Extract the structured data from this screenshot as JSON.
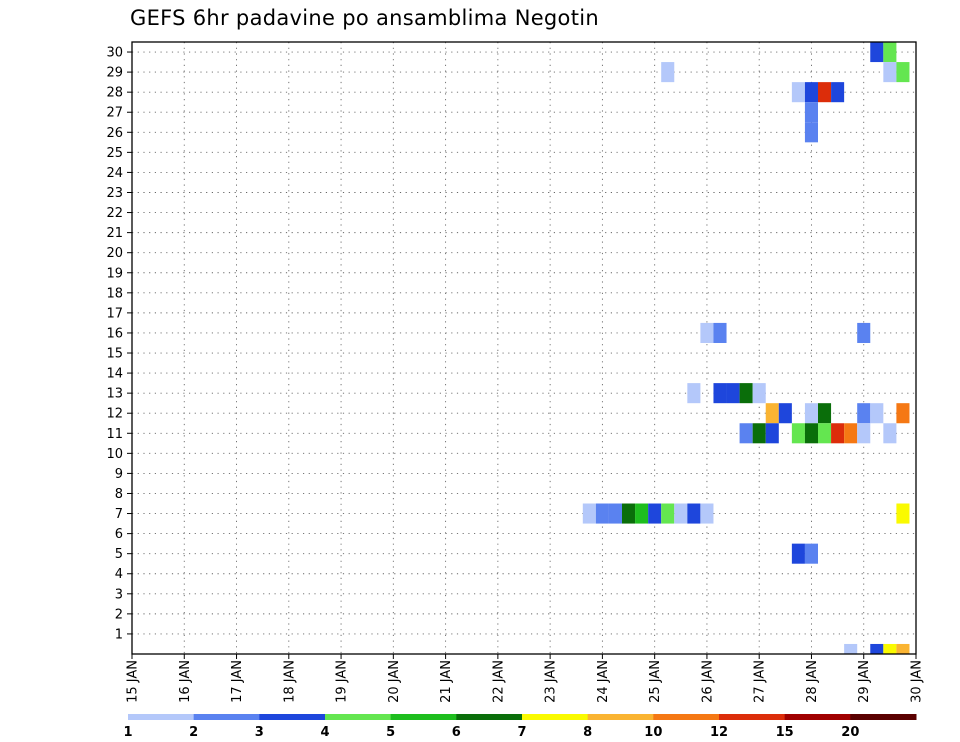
{
  "chart_data": {
    "type": "heatmap",
    "title": "GEFS 6hr padavine po ansamblima Negotin",
    "xlabel": "",
    "ylabel": "",
    "x_ticks": [
      "15 JAN",
      "16 JAN",
      "17 JAN",
      "18 JAN",
      "19 JAN",
      "20 JAN",
      "21 JAN",
      "22 JAN",
      "23 JAN",
      "24 JAN",
      "25 JAN",
      "26 JAN",
      "27 JAN",
      "28 JAN",
      "29 JAN",
      "30 JAN"
    ],
    "y_ticks": [
      "1",
      "2",
      "3",
      "4",
      "5",
      "6",
      "7",
      "8",
      "9",
      "10",
      "11",
      "12",
      "13",
      "14",
      "15",
      "16",
      "17",
      "18",
      "19",
      "20",
      "21",
      "22",
      "23",
      "24",
      "25",
      "26",
      "27",
      "28",
      "29",
      "30"
    ],
    "x_range": [
      "15 JAN 00h",
      "30 JAN 00h"
    ],
    "y_range": [
      0,
      30
    ],
    "grid": true,
    "time_step_hours": 6,
    "legend": {
      "placement": "bottom",
      "labels": [
        "1",
        "2",
        "3",
        "4",
        "5",
        "6",
        "7",
        "8",
        "10",
        "12",
        "15",
        "20"
      ],
      "colors": [
        "#b4c8fa",
        "#5a82f0",
        "#1e46dc",
        "#64e650",
        "#1ebe1e",
        "#0a6e0a",
        "#fafa00",
        "#fab432",
        "#f57814",
        "#dc2d0a",
        "#a00000",
        "#5a0000"
      ]
    },
    "cells": [
      {
        "member": 30,
        "date": "29 JAN",
        "hour": 6,
        "class": 3
      },
      {
        "member": 30,
        "date": "29 JAN",
        "hour": 12,
        "class": 4
      },
      {
        "member": 29,
        "date": "25 JAN",
        "hour": 6,
        "class": 1
      },
      {
        "member": 29,
        "date": "29 JAN",
        "hour": 12,
        "class": 1
      },
      {
        "member": 29,
        "date": "29 JAN",
        "hour": 18,
        "class": 4
      },
      {
        "member": 28,
        "date": "27 JAN",
        "hour": 18,
        "class": 1
      },
      {
        "member": 28,
        "date": "28 JAN",
        "hour": 0,
        "class": 3
      },
      {
        "member": 28,
        "date": "28 JAN",
        "hour": 6,
        "class": 10
      },
      {
        "member": 28,
        "date": "28 JAN",
        "hour": 12,
        "class": 3
      },
      {
        "member": 27,
        "date": "28 JAN",
        "hour": 0,
        "class": 2
      },
      {
        "member": 26,
        "date": "28 JAN",
        "hour": 0,
        "class": 2
      },
      {
        "member": 16,
        "date": "26 JAN",
        "hour": 0,
        "class": 1
      },
      {
        "member": 16,
        "date": "26 JAN",
        "hour": 6,
        "class": 2
      },
      {
        "member": 16,
        "date": "29 JAN",
        "hour": 0,
        "class": 2
      },
      {
        "member": 13,
        "date": "25 JAN",
        "hour": 18,
        "class": 1
      },
      {
        "member": 13,
        "date": "26 JAN",
        "hour": 6,
        "class": 3
      },
      {
        "member": 13,
        "date": "26 JAN",
        "hour": 12,
        "class": 3
      },
      {
        "member": 13,
        "date": "26 JAN",
        "hour": 18,
        "class": 6
      },
      {
        "member": 13,
        "date": "27 JAN",
        "hour": 0,
        "class": 1
      },
      {
        "member": 12,
        "date": "27 JAN",
        "hour": 6,
        "class": 8
      },
      {
        "member": 12,
        "date": "27 JAN",
        "hour": 12,
        "class": 3
      },
      {
        "member": 12,
        "date": "28 JAN",
        "hour": 0,
        "class": 1
      },
      {
        "member": 12,
        "date": "28 JAN",
        "hour": 6,
        "class": 6
      },
      {
        "member": 12,
        "date": "29 JAN",
        "hour": 0,
        "class": 2
      },
      {
        "member": 12,
        "date": "29 JAN",
        "hour": 6,
        "class": 1
      },
      {
        "member": 12,
        "date": "29 JAN",
        "hour": 18,
        "class": 9
      },
      {
        "member": 11,
        "date": "26 JAN",
        "hour": 18,
        "class": 2
      },
      {
        "member": 11,
        "date": "27 JAN",
        "hour": 0,
        "class": 6
      },
      {
        "member": 11,
        "date": "27 JAN",
        "hour": 6,
        "class": 3
      },
      {
        "member": 11,
        "date": "27 JAN",
        "hour": 18,
        "class": 4
      },
      {
        "member": 11,
        "date": "28 JAN",
        "hour": 0,
        "class": 6
      },
      {
        "member": 11,
        "date": "28 JAN",
        "hour": 6,
        "class": 4
      },
      {
        "member": 11,
        "date": "28 JAN",
        "hour": 12,
        "class": 10
      },
      {
        "member": 11,
        "date": "28 JAN",
        "hour": 18,
        "class": 9
      },
      {
        "member": 11,
        "date": "29 JAN",
        "hour": 0,
        "class": 1
      },
      {
        "member": 11,
        "date": "29 JAN",
        "hour": 12,
        "class": 1
      },
      {
        "member": 7,
        "date": "23 JAN",
        "hour": 18,
        "class": 1
      },
      {
        "member": 7,
        "date": "24 JAN",
        "hour": 0,
        "class": 2
      },
      {
        "member": 7,
        "date": "24 JAN",
        "hour": 6,
        "class": 2
      },
      {
        "member": 7,
        "date": "24 JAN",
        "hour": 12,
        "class": 6
      },
      {
        "member": 7,
        "date": "24 JAN",
        "hour": 18,
        "class": 5
      },
      {
        "member": 7,
        "date": "25 JAN",
        "hour": 0,
        "class": 3
      },
      {
        "member": 7,
        "date": "25 JAN",
        "hour": 6,
        "class": 4
      },
      {
        "member": 7,
        "date": "25 JAN",
        "hour": 12,
        "class": 1
      },
      {
        "member": 7,
        "date": "25 JAN",
        "hour": 18,
        "class": 3
      },
      {
        "member": 7,
        "date": "26 JAN",
        "hour": 0,
        "class": 1
      },
      {
        "member": 7,
        "date": "29 JAN",
        "hour": 18,
        "class": 7
      },
      {
        "member": 5,
        "date": "27 JAN",
        "hour": 18,
        "class": 3
      },
      {
        "member": 5,
        "date": "28 JAN",
        "hour": 0,
        "class": 2
      },
      {
        "member": 0,
        "date": "28 JAN",
        "hour": 18,
        "class": 1
      },
      {
        "member": 0,
        "date": "29 JAN",
        "hour": 6,
        "class": 3
      },
      {
        "member": 0,
        "date": "29 JAN",
        "hour": 12,
        "class": 7
      },
      {
        "member": 0,
        "date": "29 JAN",
        "hour": 18,
        "class": 8
      }
    ]
  }
}
